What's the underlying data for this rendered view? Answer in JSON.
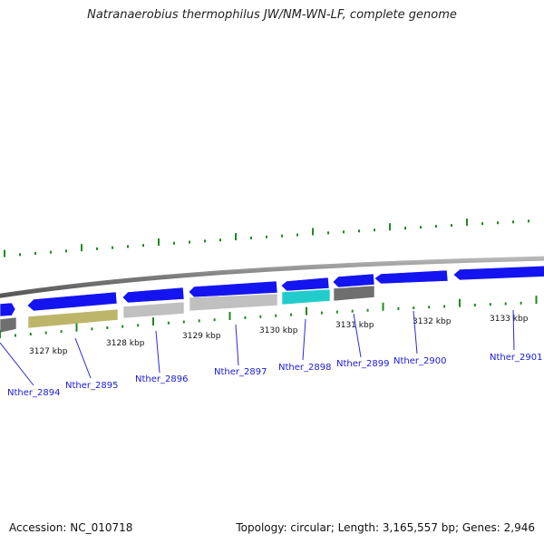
{
  "title": "Natranaerobius thermophilus JW/NM-WN-LF, complete genome",
  "footer": {
    "accession": "Accession: NC_010718",
    "summary": "Topology: circular; Length: 3,165,557 bp; Genes: 2,946"
  },
  "colors": {
    "backbone": "#7a7a7a",
    "forward_cds": "#1414f0",
    "tick": "#1e8a1e",
    "label": "#1a1adb",
    "leader_line": "#2b2bd6"
  },
  "ruler": {
    "labels": [
      "3127 kbp",
      "3128 kbp",
      "3129 kbp",
      "3130 kbp",
      "3131 kbp",
      "3132 kbp",
      "3133 kbp"
    ]
  },
  "forward_genes": [
    {
      "id": "f0",
      "color": "#1414f0"
    },
    {
      "id": "f1",
      "color": "#1414f0"
    },
    {
      "id": "f2",
      "color": "#1414f0"
    },
    {
      "id": "f3",
      "color": "#1414f0"
    },
    {
      "id": "f4",
      "color": "#1414f0"
    },
    {
      "id": "f5",
      "color": "#1414f0"
    },
    {
      "id": "f6",
      "color": "#1414f0"
    },
    {
      "id": "f7",
      "color": "#1414f0"
    },
    {
      "id": "f8",
      "color": "#1414f0"
    }
  ],
  "reverse_genes": [
    {
      "id": "r0",
      "color": "#6f6f6f"
    },
    {
      "id": "r1",
      "color": "#bdb56a"
    },
    {
      "id": "r2",
      "color": "#c0c0c0"
    },
    {
      "id": "r3",
      "color": "#c0c0c0"
    },
    {
      "id": "r4",
      "color": "#22cccc"
    },
    {
      "id": "r5",
      "color": "#6f6f6f"
    }
  ],
  "gene_labels": [
    "Nther_2894",
    "Nther_2895",
    "Nther_2896",
    "Nther_2897",
    "Nther_2898",
    "Nther_2899",
    "Nther_2900",
    "Nther_2901"
  ]
}
